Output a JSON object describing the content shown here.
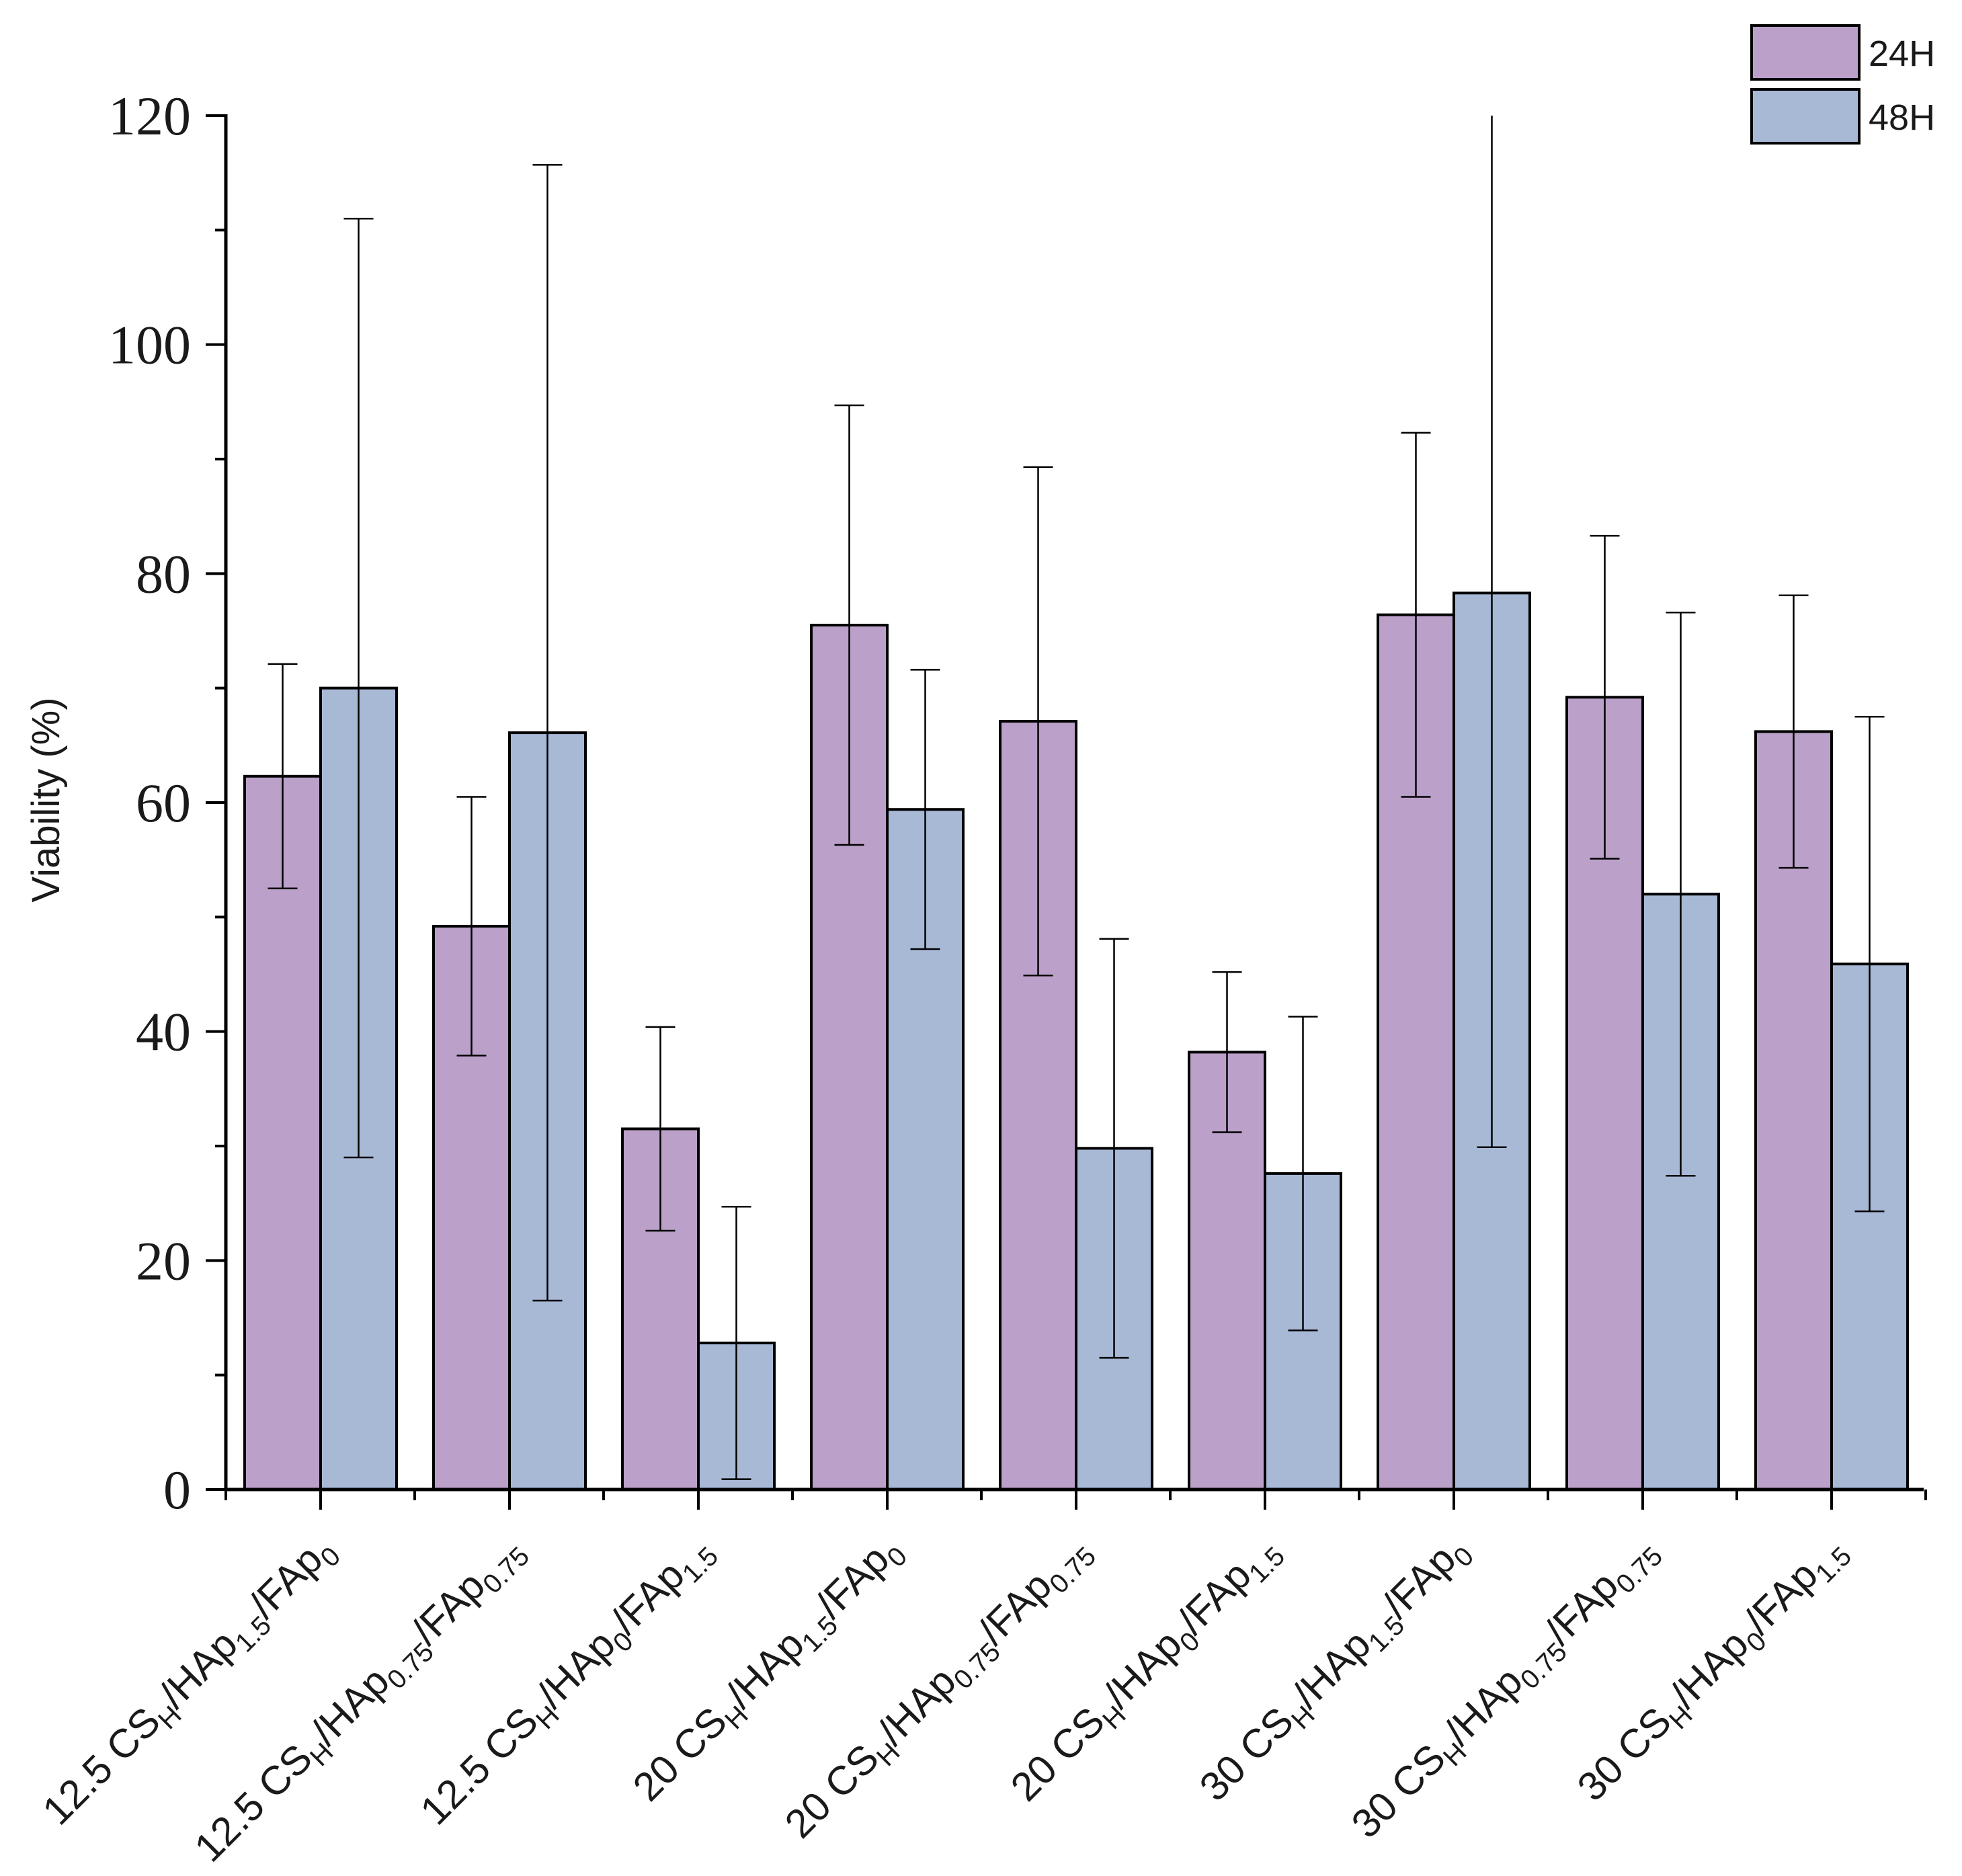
{
  "chart_data": {
    "type": "bar",
    "title": "",
    "xlabel": "",
    "ylabel": "Viability (%)",
    "ylim": [
      0,
      120
    ],
    "yticks": [
      0,
      20,
      40,
      60,
      80,
      100,
      120
    ],
    "categories": [
      {
        "prefix": "12.5 CS",
        "sub1": "H",
        "mid": "/HAp",
        "sub2": "1.5",
        "mid2": "/FAp",
        "sub3": "0"
      },
      {
        "prefix": "12.5 CS",
        "sub1": "H",
        "mid": "/HAp",
        "sub2": "0.75",
        "mid2": "/FAp",
        "sub3": "0.75"
      },
      {
        "prefix": "12.5 CS",
        "sub1": "H",
        "mid": "/HAp",
        "sub2": "0",
        "mid2": "/FAp",
        "sub3": "1.5"
      },
      {
        "prefix": "20 CS",
        "sub1": "H",
        "mid": "/HAp",
        "sub2": "1.5",
        "mid2": "/FAp",
        "sub3": "0"
      },
      {
        "prefix": "20 CS",
        "sub1": "H",
        "mid": "/HAp",
        "sub2": "0.75",
        "mid2": "/FAp",
        "sub3": "0.75"
      },
      {
        "prefix": "20 CS",
        "sub1": "H",
        "mid": "/HAp",
        "sub2": "0",
        "mid2": "/FAp",
        "sub3": "1.5"
      },
      {
        "prefix": "30 CS",
        "sub1": "H",
        "mid": "/HAp",
        "sub2": "1.5",
        "mid2": "/FAp",
        "sub3": "0"
      },
      {
        "prefix": "30 CS",
        "sub1": "H",
        "mid": "/HAp",
        "sub2": "0.75",
        "mid2": "/FAp",
        "sub3": "0.75"
      },
      {
        "prefix": "30 CS",
        "sub1": "H",
        "mid": "/HAp",
        "sub2": "0",
        "mid2": "/FAp",
        "sub3": "1.5"
      }
    ],
    "series": [
      {
        "name": "24H",
        "color": "#BBA0C9",
        "values": [
          62.3,
          49.2,
          31.5,
          75.5,
          67.1,
          38.2,
          76.4,
          69.2,
          66.2
        ],
        "errors": [
          9.8,
          11.3,
          8.9,
          19.2,
          22.2,
          7.0,
          15.9,
          14.1,
          11.9
        ]
      },
      {
        "name": "48H",
        "color": "#A8B9D6",
        "values": [
          70.0,
          66.1,
          12.8,
          59.4,
          29.8,
          27.6,
          78.3,
          52.0,
          45.9
        ],
        "errors": [
          41.0,
          49.6,
          11.9,
          12.2,
          18.3,
          13.7,
          48.4,
          24.6,
          21.6
        ]
      }
    ],
    "legend": "top-right"
  }
}
